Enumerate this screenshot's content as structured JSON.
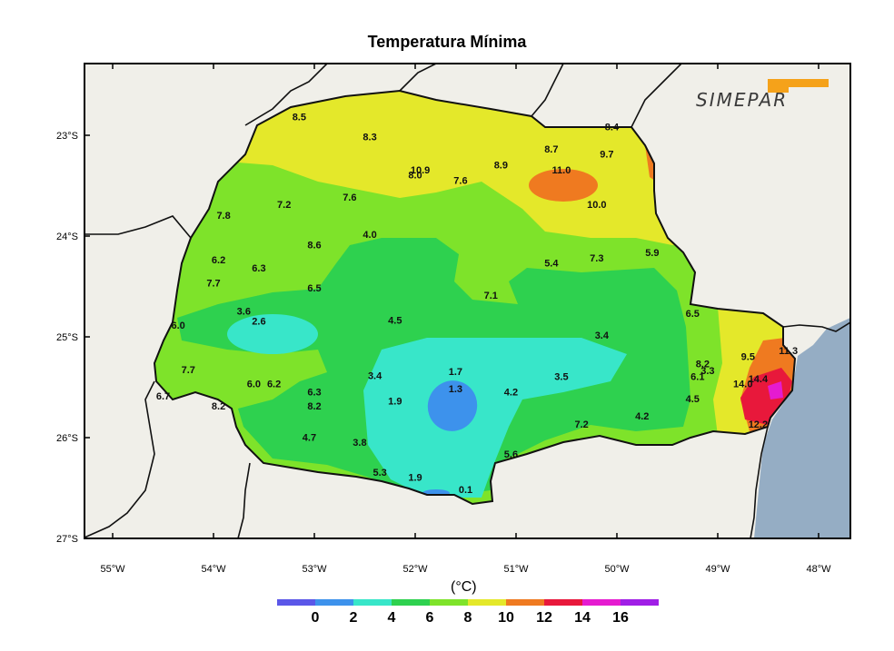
{
  "title": "Temperatura Mínima",
  "unit": "(°C)",
  "logo_text": "SIMEPAR",
  "colors": {
    "background": "#f0efe9",
    "ocean": "#95adc4",
    "scale": [
      "#5b57e8",
      "#3d92ec",
      "#38e6c9",
      "#2ed14f",
      "#7ee32a",
      "#e4e82a",
      "#ef7a20",
      "#e8183b",
      "#e51bd0",
      "#a01ee6"
    ]
  },
  "lat_ticks": [
    "23°S",
    "24°S",
    "25°S",
    "26°S",
    "27°S"
  ],
  "lon_ticks": [
    "55°W",
    "54°W",
    "53°W",
    "52°W",
    "51°W",
    "50°W",
    "49°W",
    "48°W"
  ],
  "colorbar_labels": [
    "0",
    "2",
    "4",
    "6",
    "8",
    "10",
    "12",
    "14",
    "16"
  ],
  "stations": [
    {
      "v": "8.5",
      "lon": -53.15,
      "lat": -22.85
    },
    {
      "v": "8.3",
      "lon": -52.45,
      "lat": -23.05
    },
    {
      "v": "8.4",
      "lon": -50.05,
      "lat": -22.95
    },
    {
      "v": "8.7",
      "lon": -50.65,
      "lat": -23.17
    },
    {
      "v": "9.7",
      "lon": -50.1,
      "lat": -23.22
    },
    {
      "v": "10.9",
      "lon": -51.95,
      "lat": -23.38
    },
    {
      "v": "8.0",
      "lon": -52.0,
      "lat": -23.43
    },
    {
      "v": "8.9",
      "lon": -51.15,
      "lat": -23.33
    },
    {
      "v": "11.0",
      "lon": -50.55,
      "lat": -23.38
    },
    {
      "v": "7.6",
      "lon": -51.55,
      "lat": -23.48
    },
    {
      "v": "10.0",
      "lon": -50.2,
      "lat": -23.72
    },
    {
      "v": "7.6",
      "lon": -52.65,
      "lat": -23.65
    },
    {
      "v": "7.2",
      "lon": -53.3,
      "lat": -23.72
    },
    {
      "v": "7.8",
      "lon": -53.9,
      "lat": -23.83
    },
    {
      "v": "4.0",
      "lon": -52.45,
      "lat": -24.02
    },
    {
      "v": "8.6",
      "lon": -53.0,
      "lat": -24.12
    },
    {
      "v": "6.2",
      "lon": -53.95,
      "lat": -24.27
    },
    {
      "v": "6.3",
      "lon": -53.55,
      "lat": -24.35
    },
    {
      "v": "5.4",
      "lon": -50.65,
      "lat": -24.3
    },
    {
      "v": "7.3",
      "lon": -50.2,
      "lat": -24.25
    },
    {
      "v": "5.9",
      "lon": -49.65,
      "lat": -24.2
    },
    {
      "v": "7.7",
      "lon": -54.0,
      "lat": -24.5
    },
    {
      "v": "6.5",
      "lon": -53.0,
      "lat": -24.55
    },
    {
      "v": "7.1",
      "lon": -51.25,
      "lat": -24.62
    },
    {
      "v": "3.6",
      "lon": -53.7,
      "lat": -24.78
    },
    {
      "v": "2.6",
      "lon": -53.55,
      "lat": -24.88
    },
    {
      "v": "6.0",
      "lon": -54.35,
      "lat": -24.92
    },
    {
      "v": "4.5",
      "lon": -52.2,
      "lat": -24.87
    },
    {
      "v": "6.5",
      "lon": -49.25,
      "lat": -24.8
    },
    {
      "v": "3.4",
      "lon": -50.15,
      "lat": -25.02
    },
    {
      "v": "9.5",
      "lon": -48.7,
      "lat": -25.23
    },
    {
      "v": "11.3",
      "lon": -48.3,
      "lat": -25.17
    },
    {
      "v": "7.7",
      "lon": -54.25,
      "lat": -25.36
    },
    {
      "v": "8.2",
      "lon": -49.15,
      "lat": -25.3
    },
    {
      "v": "3.3",
      "lon": -49.1,
      "lat": -25.37
    },
    {
      "v": "6.1",
      "lon": -49.2,
      "lat": -25.43
    },
    {
      "v": "1.7",
      "lon": -51.6,
      "lat": -25.38
    },
    {
      "v": "3.4",
      "lon": -52.4,
      "lat": -25.42
    },
    {
      "v": "3.5",
      "lon": -50.55,
      "lat": -25.43
    },
    {
      "v": "14.4",
      "lon": -48.6,
      "lat": -25.45
    },
    {
      "v": "14.0",
      "lon": -48.75,
      "lat": -25.5
    },
    {
      "v": "6.0",
      "lon": -53.6,
      "lat": -25.5
    },
    {
      "v": "6.2",
      "lon": -53.4,
      "lat": -25.5
    },
    {
      "v": "1.3",
      "lon": -51.6,
      "lat": -25.55
    },
    {
      "v": "4.2",
      "lon": -51.05,
      "lat": -25.58
    },
    {
      "v": "6.3",
      "lon": -53.0,
      "lat": -25.58
    },
    {
      "v": "6.7",
      "lon": -54.5,
      "lat": -25.62
    },
    {
      "v": "1.9",
      "lon": -52.2,
      "lat": -25.67
    },
    {
      "v": "4.5",
      "lon": -49.25,
      "lat": -25.65
    },
    {
      "v": "8.2",
      "lon": -53.95,
      "lat": -25.72
    },
    {
      "v": "8.2",
      "lon": -53.0,
      "lat": -25.72
    },
    {
      "v": "4.2",
      "lon": -49.75,
      "lat": -25.82
    },
    {
      "v": "7.2",
      "lon": -50.35,
      "lat": -25.9
    },
    {
      "v": "12.2",
      "lon": -48.6,
      "lat": -25.9
    },
    {
      "v": "4.7",
      "lon": -53.05,
      "lat": -26.03
    },
    {
      "v": "3.8",
      "lon": -52.55,
      "lat": -26.08
    },
    {
      "v": "5.6",
      "lon": -51.05,
      "lat": -26.2
    },
    {
      "v": "5.3",
      "lon": -52.35,
      "lat": -26.38
    },
    {
      "v": "1.9",
      "lon": -52.0,
      "lat": -26.43
    },
    {
      "v": "0.1",
      "lon": -51.5,
      "lat": -26.55
    }
  ]
}
